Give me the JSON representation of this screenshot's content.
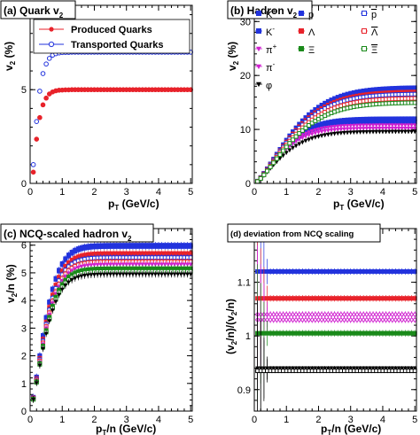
{
  "colors": {
    "red": "#e8222a",
    "blue": "#2233dd",
    "green": "#1a8a1a",
    "magenta": "#d020d0",
    "black": "#000000"
  },
  "chart_data": [
    {
      "id": "a",
      "type": "scatter",
      "title": "(a) Quark v",
      "title_sub": "2",
      "xlabel": "p",
      "xlabel_sub": "T",
      "xlabel_unit": " (GeV/c)",
      "ylabel": "v",
      "ylabel_sub": "2",
      "ylabel_unit": " (%)",
      "xlim": [
        0,
        5.05
      ],
      "ylim": [
        0,
        9.5
      ],
      "xticks": [
        0,
        1,
        2,
        3,
        4,
        5
      ],
      "yticks": [
        0,
        5
      ],
      "legend_position": "top",
      "x": [
        0.1,
        0.2,
        0.3,
        0.4,
        0.5,
        0.6,
        0.7,
        0.8,
        0.9,
        1.0,
        1.1,
        1.2,
        1.3,
        1.4,
        1.5,
        1.6,
        1.7,
        1.8,
        1.9,
        2.0,
        2.1,
        2.2,
        2.3,
        2.4,
        2.5,
        2.6,
        2.7,
        2.8,
        2.9,
        3.0,
        3.1,
        3.2,
        3.3,
        3.4,
        3.5,
        3.6,
        3.7,
        3.8,
        3.9,
        4.0,
        4.1,
        4.2,
        4.3,
        4.4,
        4.5,
        4.6,
        4.7,
        4.8,
        4.9,
        5.0
      ],
      "series": [
        {
          "name": "Produced Quarks",
          "color": "#e8222a",
          "marker": "circle-filled",
          "error": 0.12,
          "values": [
            0.6,
            2.36,
            3.51,
            4.19,
            4.55,
            4.77,
            4.88,
            4.94,
            4.97,
            4.98,
            4.99,
            4.99,
            5.0,
            5.0,
            5.0,
            5.0,
            5.0,
            5.0,
            5.0,
            5.0,
            5.0,
            5.0,
            5.0,
            5.0,
            5.0,
            5.0,
            5.0,
            5.0,
            5.0,
            5.0,
            5.0,
            5.0,
            5.0,
            5.0,
            5.0,
            5.0,
            5.0,
            5.0,
            5.0,
            5.0,
            5.0,
            5.0,
            5.0,
            5.0,
            5.0,
            5.0,
            5.0,
            5.0,
            5.0,
            5.0
          ]
        },
        {
          "name": "Transported Quarks",
          "color": "#2233dd",
          "marker": "circle-open",
          "error": 0.12,
          "values": [
            1.0,
            3.3,
            4.92,
            5.86,
            6.37,
            6.67,
            6.84,
            6.92,
            6.96,
            6.98,
            6.99,
            6.99,
            7.0,
            7.0,
            7.0,
            7.0,
            7.0,
            7.0,
            7.0,
            7.0,
            7.0,
            7.0,
            7.0,
            7.0,
            7.0,
            7.0,
            7.0,
            7.0,
            7.0,
            7.0,
            7.0,
            7.0,
            7.0,
            7.0,
            7.0,
            7.0,
            7.0,
            7.0,
            7.0,
            7.0,
            7.0,
            7.0,
            7.0,
            7.0,
            7.0,
            7.0,
            7.0,
            7.0,
            7.0,
            7.0
          ]
        }
      ]
    },
    {
      "id": "b",
      "type": "scatter",
      "title": "(b) Hadron v",
      "title_sub": "2",
      "xlabel": "p",
      "xlabel_sub": "T",
      "xlabel_unit": " (GeV/c)",
      "ylabel": "v",
      "ylabel_sub": "2",
      "ylabel_unit": " (%)",
      "xlim": [
        0,
        5.05
      ],
      "ylim": [
        0,
        33
      ],
      "xticks": [
        0,
        1,
        2,
        3,
        4,
        5
      ],
      "yticks": [
        0,
        10,
        20,
        30
      ],
      "legend_position": "top",
      "x": [
        0.1,
        0.2,
        0.3,
        0.4,
        0.5,
        0.6,
        0.7,
        0.8,
        0.9,
        1.0,
        1.1,
        1.2,
        1.3,
        1.4,
        1.5,
        1.6,
        1.7,
        1.8,
        1.9,
        2.0,
        2.1,
        2.2,
        2.3,
        2.4,
        2.5,
        2.6,
        2.7,
        2.8,
        2.9,
        3.0,
        3.1,
        3.2,
        3.3,
        3.4,
        3.5,
        3.6,
        3.7,
        3.8,
        3.9,
        4.0,
        4.1,
        4.2,
        4.3,
        4.4,
        4.5,
        4.6,
        4.7,
        4.8,
        4.9,
        5.0
      ],
      "series": [
        {
          "name": "K+",
          "label": "K",
          "sup": "+",
          "color": "#2233dd",
          "marker": "square-filled",
          "plateau": 12.0,
          "k": 0.9
        },
        {
          "name": "K-",
          "label": "K",
          "sup": "-",
          "color": "#2233dd",
          "marker": "square-filled",
          "plateau": 11.4,
          "k": 0.9
        },
        {
          "name": "pi+",
          "label": "π",
          "sup": "+",
          "color": "#d020d0",
          "marker": "triangle-down-filled",
          "plateau": 10.8,
          "k": 1.0
        },
        {
          "name": "pi-",
          "label": "π",
          "sup": "-",
          "color": "#d020d0",
          "marker": "triangle-down-filled",
          "plateau": 10.2,
          "k": 1.0
        },
        {
          "name": "phi",
          "label": "φ",
          "sup": "",
          "color": "#000000",
          "marker": "triangle-down-filled",
          "plateau": 9.6,
          "k": 0.9
        },
        {
          "name": "p",
          "label": "p",
          "sup": "",
          "color": "#2233dd",
          "marker": "square-filled",
          "plateau": 17.8,
          "k": 0.6
        },
        {
          "name": "Lambda",
          "label": "Λ",
          "sup": "",
          "color": "#e8222a",
          "marker": "square-filled",
          "plateau": 17.0,
          "k": 0.6
        },
        {
          "name": "Xi",
          "label": "Ξ",
          "sup": "",
          "color": "#1a8a1a",
          "marker": "square-filled",
          "plateau": 16.2,
          "k": 0.6
        },
        {
          "name": "pbar",
          "label": "p",
          "overline": true,
          "sup": "",
          "color": "#2233dd",
          "marker": "square-open",
          "plateau": 16.6,
          "k": 0.6
        },
        {
          "name": "Lambdabar",
          "label": "Λ",
          "overline": true,
          "sup": "",
          "color": "#e8222a",
          "marker": "square-open",
          "plateau": 15.8,
          "k": 0.6
        },
        {
          "name": "Xibar",
          "label": "Ξ",
          "overline": true,
          "sup": "",
          "color": "#1a8a1a",
          "marker": "square-open",
          "plateau": 15.0,
          "k": 0.6
        }
      ]
    },
    {
      "id": "c",
      "type": "scatter",
      "title": "(c) NCQ-scaled hadron v",
      "title_sub": "2",
      "xlabel": "p",
      "xlabel_sub": "T",
      "xlabel_unit": "/n (GeV/c)",
      "ylabel": "v",
      "ylabel_sub": "2",
      "ylabel_unit": "/n (%)",
      "xlim": [
        0,
        5.05
      ],
      "ylim": [
        0,
        6.6
      ],
      "xticks": [
        0,
        1,
        2,
        3,
        4,
        5
      ],
      "yticks": [
        0,
        1,
        2,
        3,
        4,
        5,
        6
      ],
      "x": [
        0.1,
        0.2,
        0.3,
        0.4,
        0.5,
        0.6,
        0.7,
        0.8,
        0.9,
        1.0,
        1.1,
        1.2,
        1.3,
        1.4,
        1.5,
        1.6,
        1.7,
        1.8,
        1.9,
        2.0,
        2.1,
        2.2,
        2.3,
        2.4,
        2.5,
        2.6,
        2.7,
        2.8,
        2.9,
        3.0,
        3.1,
        3.2,
        3.3,
        3.4,
        3.5,
        3.6,
        3.7,
        3.8,
        3.9,
        4.0,
        4.1,
        4.2,
        4.3,
        4.4,
        4.5,
        4.6,
        4.7,
        4.8,
        4.9,
        5.0
      ],
      "series": [
        {
          "name": "p",
          "color": "#2233dd",
          "marker": "square-filled",
          "plateau": 6.0
        },
        {
          "name": "K",
          "color": "#2233dd",
          "marker": "square-filled",
          "plateau": 5.95
        },
        {
          "name": "Lambda",
          "color": "#e8222a",
          "marker": "square-filled",
          "plateau": 5.7
        },
        {
          "name": "pbar",
          "color": "#2233dd",
          "marker": "square-open",
          "plateau": 5.55
        },
        {
          "name": "Lambdabar",
          "color": "#e8222a",
          "marker": "square-open",
          "plateau": 5.4
        },
        {
          "name": "pi",
          "color": "#d020d0",
          "marker": "triangle-down-filled",
          "plateau": 5.3
        },
        {
          "name": "Xi",
          "color": "#1a8a1a",
          "marker": "square-filled",
          "plateau": 5.15
        },
        {
          "name": "Xibar",
          "color": "#1a8a1a",
          "marker": "square-open",
          "plateau": 5.05
        },
        {
          "name": "phi",
          "color": "#000000",
          "marker": "triangle-down-filled",
          "plateau": 4.95
        }
      ]
    },
    {
      "id": "d",
      "type": "scatter",
      "title": "(d) deviation from NCQ scaling",
      "xlabel": "p",
      "xlabel_sub": "T",
      "xlabel_unit": "/n (GeV/c)",
      "ylabel_parts": [
        "(v",
        "2",
        "/n)/(v",
        "2",
        "/n)"
      ],
      "xlim": [
        0,
        5.05
      ],
      "ylim": [
        0.86,
        1.2
      ],
      "xticks": [
        0,
        1,
        2,
        3,
        4,
        5
      ],
      "yticks": [
        0.9,
        1,
        1.1
      ],
      "ytick_labels": [
        "0.9",
        "1",
        "1.1"
      ],
      "x": [
        0.1,
        0.2,
        0.3,
        0.4,
        0.5,
        0.6,
        0.7,
        0.8,
        0.9,
        1.0,
        1.1,
        1.2,
        1.3,
        1.4,
        1.5,
        1.6,
        1.7,
        1.8,
        1.9,
        2.0,
        2.1,
        2.2,
        2.3,
        2.4,
        2.5,
        2.6,
        2.7,
        2.8,
        2.9,
        3.0,
        3.1,
        3.2,
        3.3,
        3.4,
        3.5,
        3.6,
        3.7,
        3.8,
        3.9,
        4.0,
        4.1,
        4.2,
        4.3,
        4.4,
        4.5,
        4.6,
        4.7,
        4.8,
        4.9,
        5.0
      ],
      "series": [
        {
          "name": "blue",
          "color": "#2233dd",
          "marker": "square-filled",
          "level": 1.12,
          "error": 0.006
        },
        {
          "name": "red",
          "color": "#e8222a",
          "marker": "square-filled",
          "level": 1.07,
          "error": 0.006
        },
        {
          "name": "magenta-a",
          "color": "#d020d0",
          "marker": "diamond-open",
          "level": 1.04,
          "error": 0.006
        },
        {
          "name": "magenta-b",
          "color": "#d020d0",
          "marker": "diamond-open",
          "level": 1.03,
          "error": 0.006
        },
        {
          "name": "green",
          "color": "#1a8a1a",
          "marker": "square-filled",
          "level": 1.005,
          "error": 0.006
        },
        {
          "name": "black-a",
          "color": "#000000",
          "marker": "triangle-down-filled",
          "level": 0.94,
          "error": 0.004
        },
        {
          "name": "black-b",
          "color": "#000000",
          "marker": "square-open",
          "level": 0.935,
          "error": 0.004
        }
      ]
    }
  ]
}
